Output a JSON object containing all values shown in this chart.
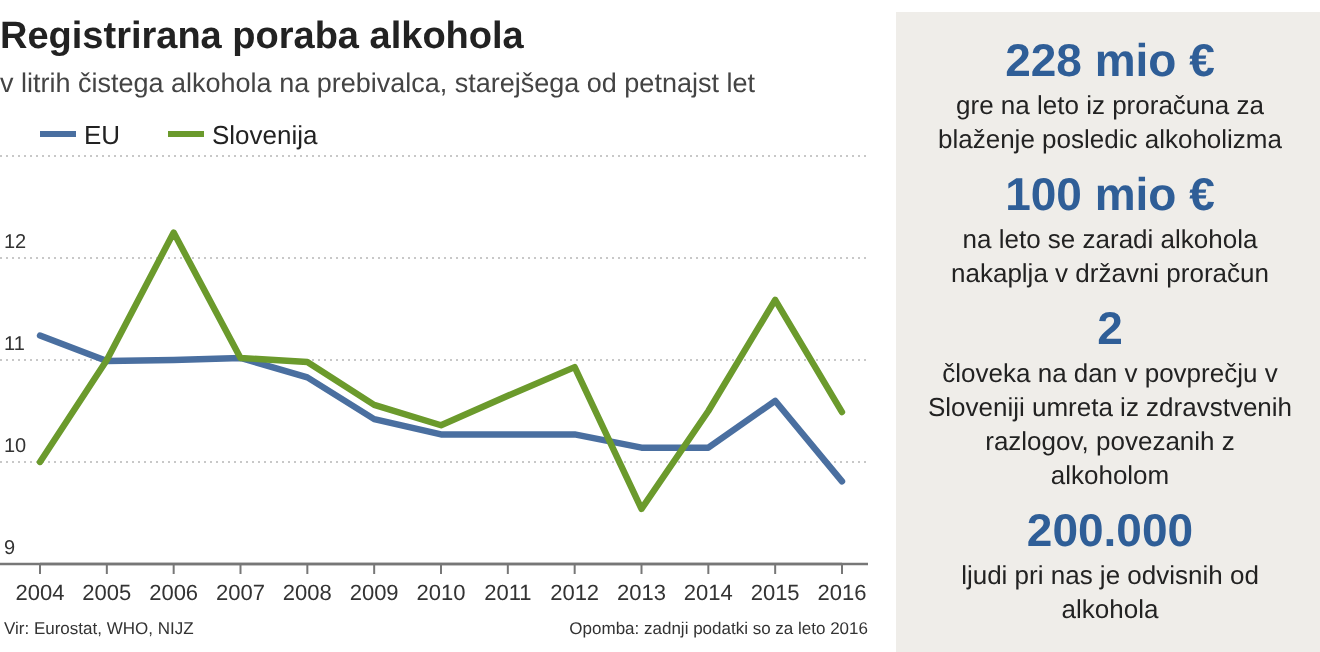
{
  "chart_data": [
    {
      "type": "line",
      "title": "Registrirana poraba alkohola",
      "subtitle": "v litrih čistega alkohola na prebivalca, starejšega od petnajst let",
      "x": [
        2004,
        2005,
        2006,
        2007,
        2008,
        2009,
        2010,
        2011,
        2012,
        2013,
        2014,
        2015,
        2016
      ],
      "xlim": [
        2004,
        2016
      ],
      "xticks": [
        2004,
        2005,
        2006,
        2007,
        2008,
        2009,
        2010,
        2011,
        2012,
        2013,
        2014,
        2015,
        2016
      ],
      "ylim": [
        9,
        13
      ],
      "yticks": [
        9,
        10,
        11,
        12,
        {
          "value": 13,
          "label": null
        }
      ],
      "grid": "y",
      "legend": "top left",
      "marker": "none",
      "line_style": "solid",
      "series": [
        {
          "name": "EU",
          "color": "#4a6fa0",
          "values": [
            11.24,
            10.99,
            11.0,
            11.02,
            10.83,
            10.42,
            10.27,
            10.27,
            10.27,
            10.14,
            10.14,
            10.6,
            9.81
          ]
        },
        {
          "name": "Slovenija",
          "color": "#6b9a2c",
          "values": [
            10.0,
            11.0,
            12.25,
            11.02,
            10.98,
            10.56,
            10.36,
            10.65,
            10.93,
            9.54,
            10.5,
            11.59,
            10.49
          ]
        }
      ],
      "annotations": [
        "Vir: Eurostat, WHO, NIJZ",
        "Opomba: zadnji podatki so za leto 2016"
      ]
    },
    {
      "type": "other",
      "annotations": [
        "228 mio €",
        "gre na leto iz proračuna za blaženje posledic alkoholizma",
        "100 mio €",
        "na leto se zaradi alkohola nakaplja v državni proračun",
        "2",
        "človeka na dan v povprečju v Sloveniji umreta iz zdravstvenih razlogov, povezanih z alkoholom",
        "200.000",
        "ljudi pri nas je odvisnih od alkohola"
      ]
    }
  ]
}
